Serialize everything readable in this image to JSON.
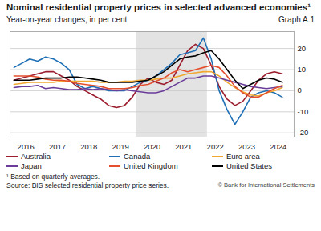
{
  "chart_data": {
    "type": "line",
    "title": "Nominal residential property prices in selected advanced economies¹",
    "subtitle": "Year-on-year changes, in per cent",
    "graph_label": "Graph A.1",
    "footnote": "¹ Based on quarterly averages.",
    "source": "Source: BIS selected residential property price series.",
    "copyright": "© Bank for International Settlements",
    "x": [
      2016.125,
      2016.375,
      2016.625,
      2016.875,
      2017.125,
      2017.375,
      2017.625,
      2017.875,
      2018.125,
      2018.375,
      2018.625,
      2018.875,
      2019.125,
      2019.375,
      2019.625,
      2019.875,
      2020.125,
      2020.375,
      2020.625,
      2020.875,
      2021.125,
      2021.375,
      2021.625,
      2021.875,
      2022.125,
      2022.375,
      2022.625,
      2022.875,
      2023.125,
      2023.375,
      2023.625,
      2023.875,
      2024.125,
      2024.375,
      2024.625
    ],
    "series": [
      {
        "name": "Australia",
        "color": "#9b1d2e",
        "values": [
          5,
          6,
          7,
          8,
          9,
          9,
          7,
          5,
          2,
          0,
          -2,
          -4,
          -7,
          -8,
          -7,
          -3,
          3,
          6,
          4,
          3,
          5,
          12,
          19,
          22,
          20,
          12,
          2,
          -4,
          -7,
          -5,
          0,
          5,
          8,
          9,
          8
        ]
      },
      {
        "name": "Canada",
        "color": "#1f6fb5",
        "values": [
          11,
          13,
          15,
          14,
          16,
          15,
          13,
          10,
          3,
          1,
          2,
          1,
          0,
          0,
          0,
          2,
          4,
          5,
          7,
          10,
          13,
          17,
          18,
          19,
          25,
          15,
          0,
          -9,
          -16,
          -10,
          -3,
          -1,
          0,
          -1,
          -3
        ]
      },
      {
        "name": "Euro area",
        "color": "#f0a830",
        "values": [
          3,
          3.5,
          4,
          4,
          4,
          4,
          4.5,
          4.5,
          4.5,
          4.5,
          4.5,
          4,
          4,
          4,
          4.5,
          4.5,
          5,
          5,
          5.5,
          6,
          6,
          7,
          8,
          8.5,
          9,
          9,
          7,
          4,
          1.5,
          -0.5,
          -2,
          -2.5,
          -1,
          0,
          1.5
        ]
      },
      {
        "name": "Japan",
        "color": "#6a3d9a",
        "values": [
          1.5,
          2,
          2,
          2.5,
          1,
          1.5,
          1,
          0.5,
          0.5,
          1,
          0.5,
          1,
          0.5,
          0,
          0.5,
          0,
          -0.5,
          -1,
          -1,
          0,
          2,
          4,
          6,
          6,
          7,
          7,
          6,
          5,
          4,
          3,
          2,
          1.5,
          1,
          1.5,
          2
        ]
      },
      {
        "name": "United Kingdom",
        "color": "#e4502f",
        "values": [
          7,
          7,
          7,
          6.5,
          5.5,
          5,
          5,
          4.5,
          3.5,
          3,
          2.5,
          2,
          1,
          1,
          1,
          1.5,
          2.5,
          3,
          4.5,
          6,
          8.5,
          10,
          9,
          10,
          11,
          12,
          11,
          7,
          2,
          -1,
          -3,
          -3,
          -1,
          1,
          2.5
        ]
      },
      {
        "name": "United States",
        "color": "#000000",
        "values": [
          5,
          5,
          5,
          5.5,
          6,
          6,
          6,
          6.5,
          6.5,
          6,
          5.5,
          5,
          4,
          4,
          4,
          4,
          4.5,
          5,
          7,
          9,
          12,
          15,
          16,
          16.5,
          18,
          19,
          15,
          10,
          5,
          1,
          3,
          5,
          6,
          5.5,
          4
        ]
      }
    ],
    "xlim": [
      2016,
      2025
    ],
    "xticks": [
      {
        "value": 2016.5,
        "label": "2016"
      },
      {
        "value": 2017.5,
        "label": "2017"
      },
      {
        "value": 2018.5,
        "label": "2018"
      },
      {
        "value": 2019.5,
        "label": "2019"
      },
      {
        "value": 2020.5,
        "label": "2020"
      },
      {
        "value": 2021.5,
        "label": "2021"
      },
      {
        "value": 2022.5,
        "label": "2022"
      },
      {
        "value": 2023.5,
        "label": "2023"
      },
      {
        "value": 2024.5,
        "label": "2024"
      }
    ],
    "ylim": [
      -22,
      28
    ],
    "yticks": [
      -20,
      -10,
      0,
      10,
      20
    ],
    "shaded_x": [
      2020,
      2022.25
    ],
    "grid": true,
    "legend": "bottom"
  }
}
